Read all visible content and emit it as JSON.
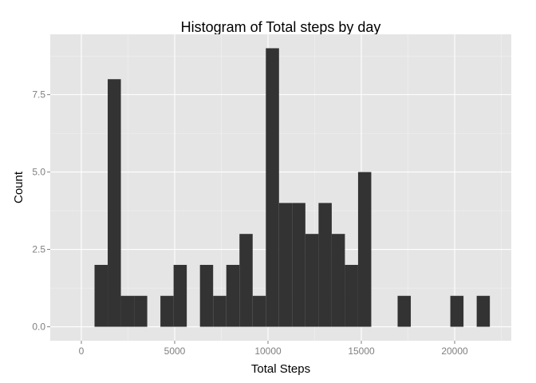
{
  "chart_data": {
    "type": "bar",
    "title": "Histogram of Total steps by day",
    "xlabel": "Total Steps",
    "ylabel": "Count",
    "bin_width": 706,
    "x": [
      1059,
      1765,
      2471,
      3177,
      4589,
      5295,
      6707,
      7413,
      8119,
      8825,
      9531,
      10237,
      10943,
      11649,
      12355,
      13061,
      13767,
      14473,
      15179,
      17297,
      20121,
      21533
    ],
    "values": [
      2,
      8,
      1,
      1,
      1,
      2,
      2,
      1,
      2,
      3,
      1,
      9,
      4,
      4,
      3,
      4,
      3,
      2,
      5,
      1,
      1,
      1
    ],
    "xlim": [
      -1666,
      23033
    ],
    "ylim": [
      -0.45,
      9.45
    ],
    "x_ticks": [
      0,
      5000,
      10000,
      15000,
      20000
    ],
    "x_tick_labels": [
      "0",
      "5000",
      "10000",
      "15000",
      "20000"
    ],
    "y_ticks": [
      0,
      2.5,
      5,
      7.5
    ],
    "y_tick_labels": [
      "0.0",
      "2.5",
      "5.0",
      "7.5"
    ],
    "grid": true,
    "colors": {
      "panel": "#e5e5e5",
      "grid_major": "#ffffff",
      "grid_minor": "#f2f2f2",
      "bar": "#333333"
    }
  }
}
